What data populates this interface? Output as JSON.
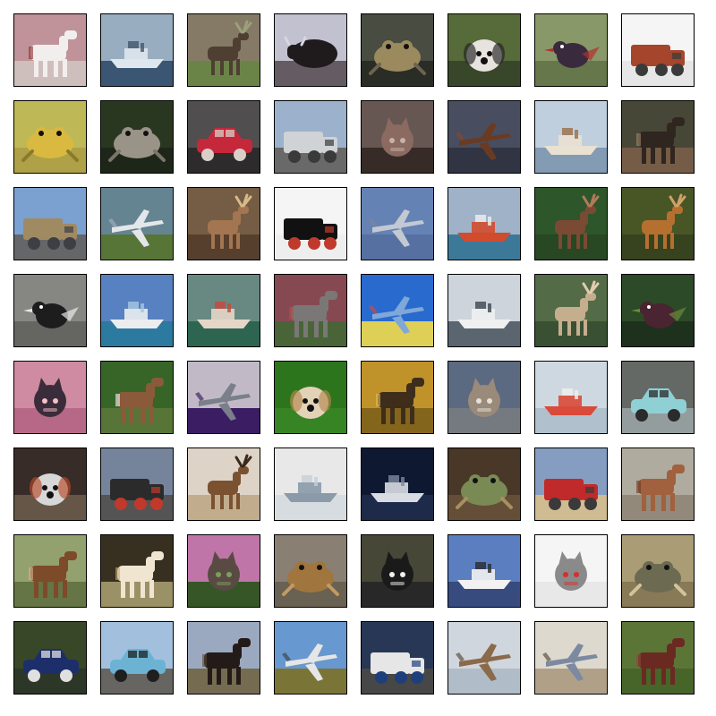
{
  "grid": {
    "rows": 8,
    "cols": 8,
    "background": "#ffffff",
    "border_color": "#000000",
    "tiles": [
      {
        "subject": "horse",
        "colors": {
          "sky": "#c79aa0",
          "ground": "#d8c7c4",
          "subject": "#f2eeee",
          "accent": "#8a2a2a"
        }
      },
      {
        "subject": "ship",
        "colors": {
          "sky": "#9fb6c8",
          "ground": "#3e5a78",
          "subject": "#dfe7ee",
          "accent": "#44556a"
        }
      },
      {
        "subject": "deer",
        "colors": {
          "sky": "#8b7f6a",
          "ground": "#6f8a4a",
          "subject": "#4f3e32",
          "accent": "#9aa07a"
        }
      },
      {
        "subject": "cow",
        "colors": {
          "sky": "#c9c9d8",
          "ground": "#6a5f67",
          "subject": "#1f1b1d",
          "accent": "#d7d7e3"
        }
      },
      {
        "subject": "frog",
        "colors": {
          "sky": "#4b5044",
          "ground": "#2c2e28",
          "subject": "#9b8a5e",
          "accent": "#6d6350"
        }
      },
      {
        "subject": "dog",
        "colors": {
          "sky": "#5b6f3d",
          "ground": "#3b4a2b",
          "subject": "#e7e3df",
          "accent": "#222222"
        }
      },
      {
        "subject": "bird",
        "colors": {
          "sky": "#8f9f6e",
          "ground": "#6a7c4f",
          "subject": "#3a2a3e",
          "accent": "#b03030"
        }
      },
      {
        "subject": "truck",
        "colors": {
          "sky": "#ffffff",
          "ground": "#f0f0f0",
          "subject": "#a5452b",
          "accent": "#3a3a3a"
        }
      },
      {
        "subject": "frog",
        "colors": {
          "sky": "#c7c05a",
          "ground": "#b7a84a",
          "subject": "#d9b940",
          "accent": "#8a7a2c"
        }
      },
      {
        "subject": "frog",
        "colors": {
          "sky": "#2c3a22",
          "ground": "#1f2819",
          "subject": "#9a9388",
          "accent": "#7b746a"
        }
      },
      {
        "subject": "car",
        "colors": {
          "sky": "#545252",
          "ground": "#2f2d2d",
          "subject": "#c4283a",
          "accent": "#d8d0c8"
        }
      },
      {
        "subject": "truck",
        "colors": {
          "sky": "#a3b9d4",
          "ground": "#6e6e6e",
          "subject": "#cfd3d6",
          "accent": "#3a3a3a"
        }
      },
      {
        "subject": "cat",
        "colors": {
          "sky": "#6c5b57",
          "ground": "#3a2d2a",
          "subject": "#8a6a61",
          "accent": "#c8b1a6"
        }
      },
      {
        "subject": "airplane",
        "colors": {
          "sky": "#4d5164",
          "ground": "#333746",
          "subject": "#6a3b22",
          "accent": "#8b4a26"
        }
      },
      {
        "subject": "ship",
        "colors": {
          "sky": "#c8d8e6",
          "ground": "#8aa2bc",
          "subject": "#e9e1d1",
          "accent": "#9a6d46"
        }
      },
      {
        "subject": "horse",
        "colors": {
          "sky": "#4a4a3a",
          "ground": "#7a6049",
          "subject": "#2f2620",
          "accent": "#a3896b"
        }
      },
      {
        "subject": "truck",
        "colors": {
          "sky": "#7fa8d8",
          "ground": "#6a6b6c",
          "subject": "#a08a62",
          "accent": "#3d3f44"
        }
      },
      {
        "subject": "airplane",
        "colors": {
          "sky": "#6a8a98",
          "ground": "#5a7a3a",
          "subject": "#e4e7ea",
          "accent": "#a8b2bb"
        }
      },
      {
        "subject": "deer",
        "colors": {
          "sky": "#7a6047",
          "ground": "#5a422f",
          "subject": "#a37550",
          "accent": "#d9b98a"
        }
      },
      {
        "subject": "truck",
        "colors": {
          "sky": "#ffffff",
          "ground": "#f8f8f8",
          "subject": "#111111",
          "accent": "#c0392b"
        }
      },
      {
        "subject": "airplane",
        "colors": {
          "sky": "#6a88bd",
          "ground": "#5a76a8",
          "subject": "#c3c9d2",
          "accent": "#7d8793"
        }
      },
      {
        "subject": "ship",
        "colors": {
          "sky": "#a7bad0",
          "ground": "#3f7ea0",
          "subject": "#d14b2d",
          "accent": "#f0f0f0"
        }
      },
      {
        "subject": "deer",
        "colors": {
          "sky": "#2f5a2c",
          "ground": "#2a4a25",
          "subject": "#7b4a34",
          "accent": "#b27a5a"
        }
      },
      {
        "subject": "deer",
        "colors": {
          "sky": "#4b5a28",
          "ground": "#3a4620",
          "subject": "#b5702f",
          "accent": "#d2a16a"
        }
      },
      {
        "subject": "bird",
        "colors": {
          "sky": "#8c8d89",
          "ground": "#6a6b67",
          "subject": "#1d1d1d",
          "accent": "#e9e9e9"
        }
      },
      {
        "subject": "ship",
        "colors": {
          "sky": "#5b87c8",
          "ground": "#2f7fa7",
          "subject": "#ecedf0",
          "accent": "#a8c8e0"
        }
      },
      {
        "subject": "ship",
        "colors": {
          "sky": "#6d8f88",
          "ground": "#2f6a55",
          "subject": "#e4d7c8",
          "accent": "#c9473b"
        }
      },
      {
        "subject": "horse",
        "colors": {
          "sky": "#8d4c55",
          "ground": "#4c6a3a",
          "subject": "#7a7777",
          "accent": "#b44b4b"
        }
      },
      {
        "subject": "airplane",
        "colors": {
          "sky": "#2b6fd8",
          "ground": "#e8d95a",
          "subject": "#7fa8d8",
          "accent": "#d84a3a"
        }
      },
      {
        "subject": "ship",
        "colors": {
          "sky": "#d7dde4",
          "ground": "#5f6a75",
          "subject": "#f0f0f0",
          "accent": "#3b4652"
        }
      },
      {
        "subject": "deer",
        "colors": {
          "sky": "#58704a",
          "ground": "#3d5436",
          "subject": "#c5ae8e",
          "accent": "#e0cdb0"
        }
      },
      {
        "subject": "bird",
        "colors": {
          "sky": "#2e4d2a",
          "ground": "#1f331e",
          "subject": "#4a2430",
          "accent": "#6b8a3a"
        }
      },
      {
        "subject": "cat",
        "colors": {
          "sky": "#d891a8",
          "ground": "#c06d8d",
          "subject": "#3a2c3a",
          "accent": "#f3c0c8"
        }
      },
      {
        "subject": "horse",
        "colors": {
          "sky": "#3a6a2a",
          "ground": "#5a7a3a",
          "subject": "#8a5a3a",
          "accent": "#f5f5f5"
        }
      },
      {
        "subject": "airplane",
        "colors": {
          "sky": "#c9c2cf",
          "ground": "#3e1f69",
          "subject": "#7a7f8a",
          "accent": "#2c0f55"
        }
      },
      {
        "subject": "dog",
        "colors": {
          "sky": "#2f7a1f",
          "ground": "#3a8a26",
          "subject": "#e2d2b8",
          "accent": "#b5894e"
        }
      },
      {
        "subject": "horse",
        "colors": {
          "sky": "#c89a2c",
          "ground": "#8a6a1e",
          "subject": "#3e2d1b",
          "accent": "#e2be5a"
        }
      },
      {
        "subject": "cat",
        "colors": {
          "sky": "#5f6f86",
          "ground": "#7a7f86",
          "subject": "#9a8a7a",
          "accent": "#e5e0d8"
        }
      },
      {
        "subject": "ship",
        "colors": {
          "sky": "#d7e1ea",
          "ground": "#b8c8d6",
          "subject": "#d94a3a",
          "accent": "#f0f0f0"
        }
      },
      {
        "subject": "car",
        "colors": {
          "sky": "#6a6e6a",
          "ground": "#9aa4a4",
          "subject": "#8fd0d4",
          "accent": "#2b2b2b"
        }
      },
      {
        "subject": "dog",
        "colors": {
          "sky": "#3a2e2a",
          "ground": "#6a5a4a",
          "subject": "#d7d7d7",
          "accent": "#b54a2a"
        }
      },
      {
        "subject": "truck",
        "colors": {
          "sky": "#7a8aa2",
          "ground": "#585858",
          "subject": "#2b2b2b",
          "accent": "#c0392b"
        }
      },
      {
        "subject": "deer",
        "colors": {
          "sky": "#e6dccf",
          "ground": "#c9b394",
          "subject": "#7a5230",
          "accent": "#3a2a1a"
        }
      },
      {
        "subject": "ship",
        "colors": {
          "sky": "#f2f2f2",
          "ground": "#dfe5ea",
          "subject": "#8a9aa8",
          "accent": "#c7ced5"
        }
      },
      {
        "subject": "ship",
        "colors": {
          "sky": "#0f1a33",
          "ground": "#1f2c4d",
          "subject": "#d9dde3",
          "accent": "#7d8aa0"
        }
      },
      {
        "subject": "frog",
        "colors": {
          "sky": "#4c3a2a",
          "ground": "#6a523b",
          "subject": "#7a8a55",
          "accent": "#a88f60"
        }
      },
      {
        "subject": "truck",
        "colors": {
          "sky": "#8aa4c8",
          "ground": "#d8c49a",
          "subject": "#c02a2a",
          "accent": "#3a3a3a"
        }
      },
      {
        "subject": "horse",
        "colors": {
          "sky": "#b7b2a5",
          "ground": "#9a8f7f",
          "subject": "#a1603e",
          "accent": "#6d3b24"
        }
      },
      {
        "subject": "horse",
        "colors": {
          "sky": "#9aa873",
          "ground": "#6b7a48",
          "subject": "#7d4a2a",
          "accent": "#d9b48a"
        }
      },
      {
        "subject": "horse",
        "colors": {
          "sky": "#3a3222",
          "ground": "#a2976c",
          "subject": "#efe5d0",
          "accent": "#c3a877"
        }
      },
      {
        "subject": "cat",
        "colors": {
          "sky": "#c87ab0",
          "ground": "#3a5a2a",
          "subject": "#5a4a44",
          "accent": "#7aa05a"
        }
      },
      {
        "subject": "frog",
        "colors": {
          "sky": "#8f8678",
          "ground": "#6e6556",
          "subject": "#a0763e",
          "accent": "#c39a61"
        }
      },
      {
        "subject": "cat",
        "colors": {
          "sky": "#4a4a3a",
          "ground": "#2a2a2a",
          "subject": "#1a1a1a",
          "accent": "#f0f0f0"
        }
      },
      {
        "subject": "ship",
        "colors": {
          "sky": "#5f84c8",
          "ground": "#3a4f85",
          "subject": "#f2f2f2",
          "accent": "#2b2b2b"
        }
      },
      {
        "subject": "cat",
        "colors": {
          "sky": "#ffffff",
          "ground": "#f2f2f2",
          "subject": "#8a8a8a",
          "accent": "#d32f2f"
        }
      },
      {
        "subject": "frog",
        "colors": {
          "sky": "#b1a37a",
          "ground": "#8e7f5a",
          "subject": "#6d6a52",
          "accent": "#d3c39a"
        }
      },
      {
        "subject": "car",
        "colors": {
          "sky": "#3a4a2a",
          "ground": "#2f3a2a",
          "subject": "#1d2f6a",
          "accent": "#e0e0e0"
        }
      },
      {
        "subject": "car",
        "colors": {
          "sky": "#a9c8e8",
          "ground": "#6c6a66",
          "subject": "#6cb3d3",
          "accent": "#1f1f1f"
        }
      },
      {
        "subject": "horse",
        "colors": {
          "sky": "#a2b0c8",
          "ground": "#7a7054",
          "subject": "#231b18",
          "accent": "#5a4a3a"
        }
      },
      {
        "subject": "airplane",
        "colors": {
          "sky": "#6c9fd8",
          "ground": "#7f7a3a",
          "subject": "#e6e6e6",
          "accent": "#3a3a3a"
        }
      },
      {
        "subject": "truck",
        "colors": {
          "sky": "#2a3a5a",
          "ground": "#4a4a4a",
          "subject": "#e6e6e6",
          "accent": "#1f3f7a"
        }
      },
      {
        "subject": "airplane",
        "colors": {
          "sky": "#d9dfe6",
          "ground": "#b9c4d2",
          "subject": "#8a6a4a",
          "accent": "#4a3a2a"
        }
      },
      {
        "subject": "airplane",
        "colors": {
          "sky": "#e8e2d8",
          "ground": "#b8a78e",
          "subject": "#7b8aa0",
          "accent": "#4a3a2a"
        }
      },
      {
        "subject": "horse",
        "colors": {
          "sky": "#5f7a3a",
          "ground": "#4a6a2a",
          "subject": "#6a2a22",
          "accent": "#8a4a3a"
        }
      }
    ]
  }
}
